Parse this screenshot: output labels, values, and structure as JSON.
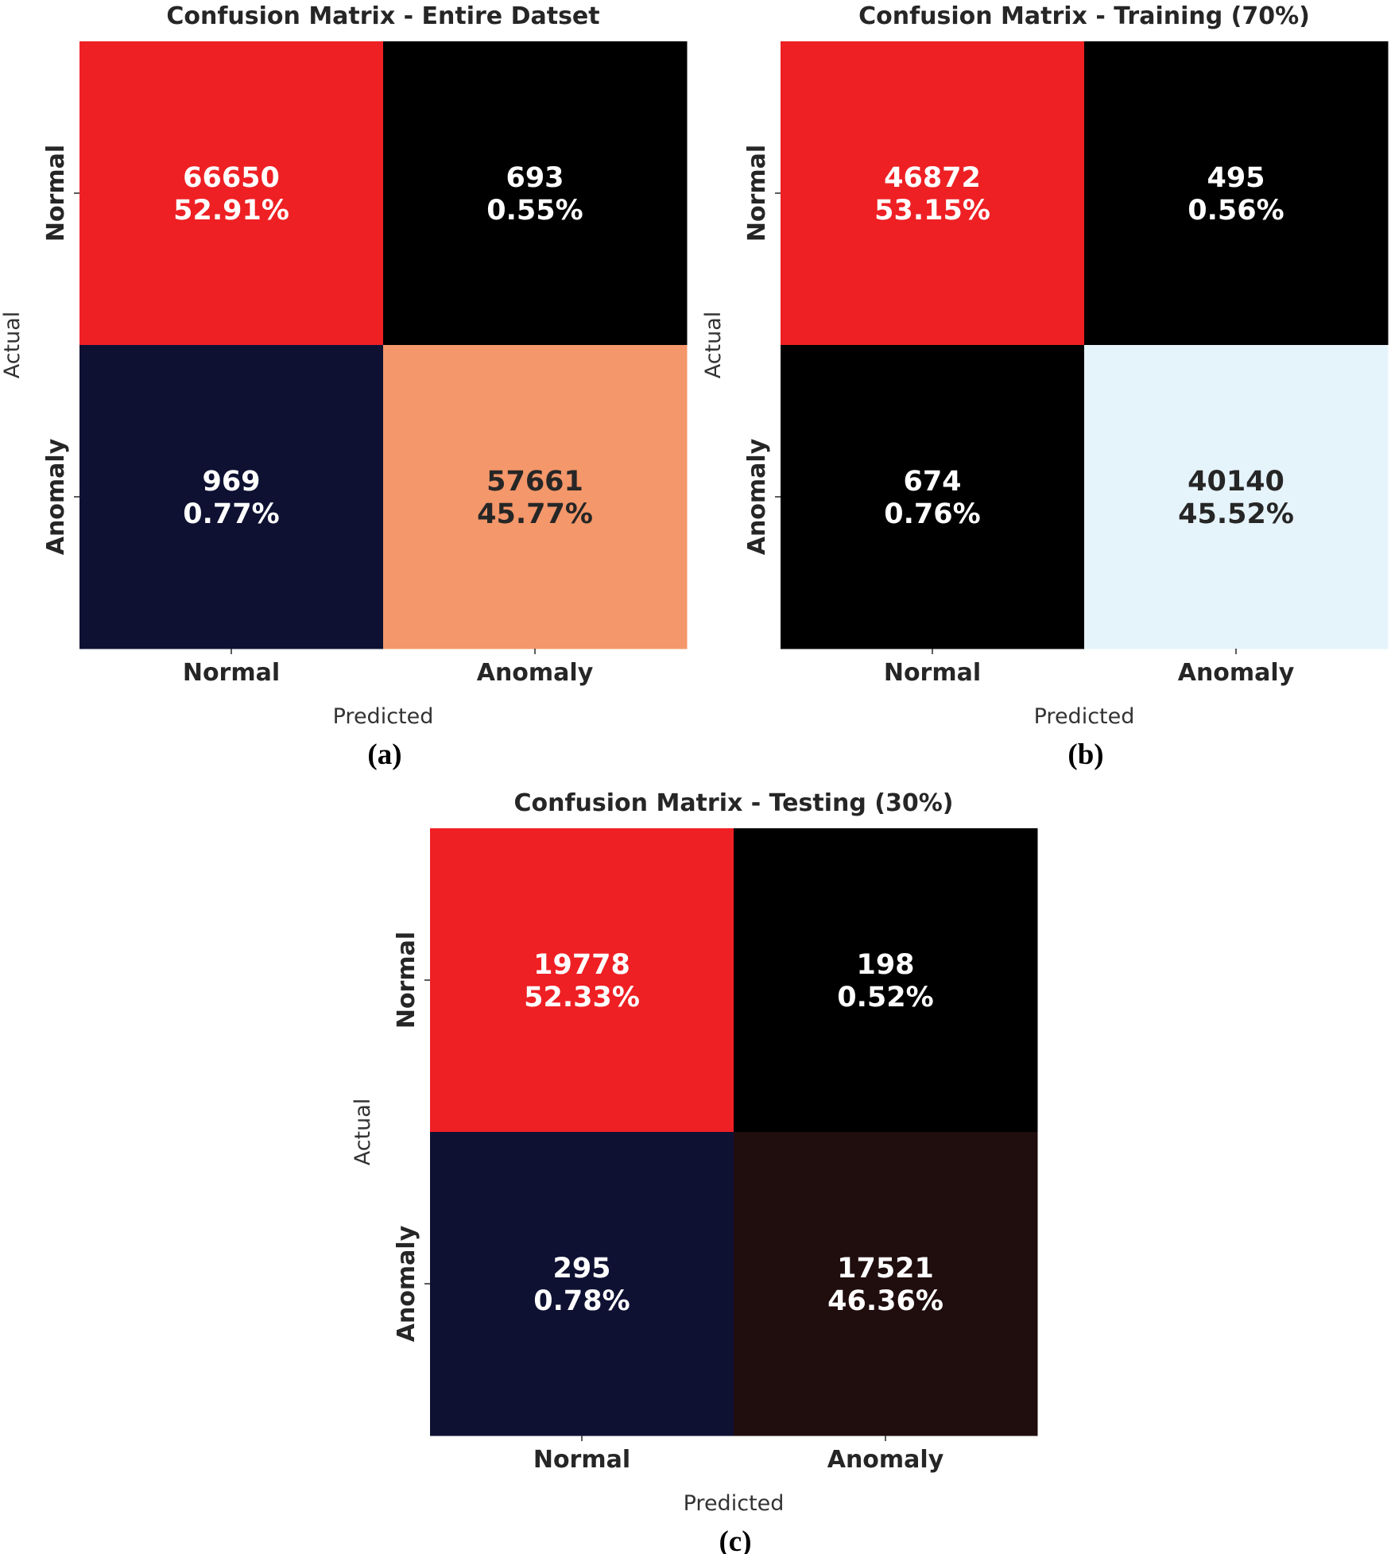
{
  "chart_data": [
    {
      "type": "heatmap",
      "panel_label": "(a)",
      "title": "Confusion Matrix - Entire Datset",
      "xlabel": "Predicted",
      "ylabel": "Actual",
      "x_categories": [
        "Normal",
        "Anomaly"
      ],
      "y_categories": [
        "Normal",
        "Anomaly"
      ],
      "cells": [
        [
          {
            "count": "66650",
            "percent": "52.91%",
            "fill": "#ee2024",
            "text_color": "#ffffff"
          },
          {
            "count": "693",
            "percent": "0.55%",
            "fill": "#000000",
            "text_color": "#ffffff"
          }
        ],
        [
          {
            "count": "969",
            "percent": "0.77%",
            "fill": "#0f1133",
            "text_color": "#ffffff"
          },
          {
            "count": "57661",
            "percent": "45.77%",
            "fill": "#f4976a",
            "text_color": "#262626"
          }
        ]
      ]
    },
    {
      "type": "heatmap",
      "panel_label": "(b)",
      "title": "Confusion Matrix - Training (70%)",
      "xlabel": "Predicted",
      "ylabel": "Actual",
      "x_categories": [
        "Normal",
        "Anomaly"
      ],
      "y_categories": [
        "Normal",
        "Anomaly"
      ],
      "cells": [
        [
          {
            "count": "46872",
            "percent": "53.15%",
            "fill": "#ee2024",
            "text_color": "#ffffff"
          },
          {
            "count": "495",
            "percent": "0.56%",
            "fill": "#000000",
            "text_color": "#ffffff"
          }
        ],
        [
          {
            "count": "674",
            "percent": "0.76%",
            "fill": "#000000",
            "text_color": "#ffffff"
          },
          {
            "count": "40140",
            "percent": "45.52%",
            "fill": "#e5f3fa",
            "text_color": "#262626"
          }
        ]
      ]
    },
    {
      "type": "heatmap",
      "panel_label": "(c)",
      "title": "Confusion Matrix - Testing (30%)",
      "xlabel": "Predicted",
      "ylabel": "Actual",
      "x_categories": [
        "Normal",
        "Anomaly"
      ],
      "y_categories": [
        "Normal",
        "Anomaly"
      ],
      "cells": [
        [
          {
            "count": "19778",
            "percent": "52.33%",
            "fill": "#ee2024",
            "text_color": "#ffffff"
          },
          {
            "count": "198",
            "percent": "0.52%",
            "fill": "#000000",
            "text_color": "#ffffff"
          }
        ],
        [
          {
            "count": "295",
            "percent": "0.78%",
            "fill": "#0f1133",
            "text_color": "#ffffff"
          },
          {
            "count": "17521",
            "percent": "46.36%",
            "fill": "#200d0e",
            "text_color": "#ffffff"
          }
        ]
      ]
    }
  ]
}
